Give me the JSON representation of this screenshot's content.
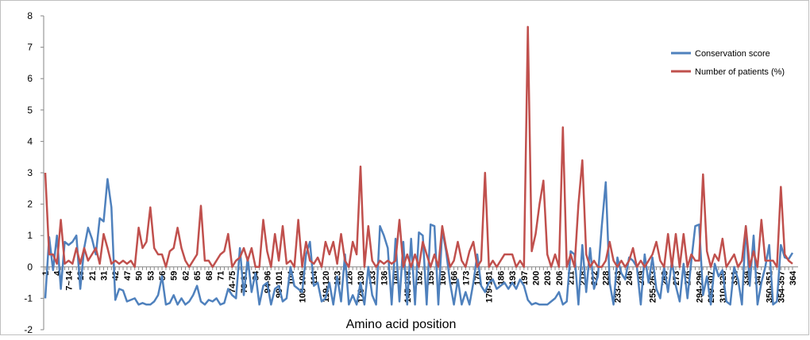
{
  "chart_data": {
    "type": "line",
    "x_label": "Amino acid position",
    "categories": [
      "1",
      null,
      null,
      "4",
      null,
      null,
      "7~14",
      null,
      null,
      "18",
      null,
      null,
      "21",
      null,
      null,
      "31",
      null,
      null,
      "42",
      null,
      null,
      "47",
      null,
      null,
      "50",
      null,
      null,
      "53",
      null,
      null,
      "56",
      null,
      null,
      "59",
      null,
      null,
      "62",
      null,
      null,
      "65",
      null,
      null,
      "68",
      null,
      null,
      "71",
      null,
      null,
      "74-75",
      null,
      null,
      "78-81",
      null,
      null,
      "84",
      null,
      null,
      "94-96",
      null,
      null,
      "99-101",
      null,
      null,
      "104",
      null,
      null,
      "108-109",
      null,
      null,
      "114",
      null,
      null,
      "119-120",
      null,
      null,
      "123",
      null,
      null,
      "126",
      null,
      null,
      "129-130",
      null,
      null,
      "133",
      null,
      null,
      "136",
      null,
      null,
      "140",
      null,
      null,
      "145-148",
      null,
      null,
      "152",
      null,
      null,
      "155",
      null,
      null,
      "160",
      null,
      null,
      "166",
      null,
      null,
      "173",
      null,
      null,
      "176",
      null,
      null,
      "179-181",
      null,
      null,
      "186",
      null,
      null,
      "193",
      null,
      null,
      "197",
      null,
      null,
      "200",
      null,
      null,
      "203",
      null,
      null,
      "206",
      null,
      null,
      "211",
      null,
      null,
      "218",
      null,
      null,
      "222",
      null,
      null,
      "228",
      null,
      null,
      "233-243",
      null,
      null,
      "246",
      null,
      null,
      "249",
      null,
      null,
      "255-263",
      null,
      null,
      "268",
      null,
      null,
      "273",
      null,
      null,
      "276",
      null,
      null,
      "294-296",
      null,
      null,
      "299-307",
      null,
      null,
      "310-328",
      null,
      null,
      "331",
      null,
      null,
      "334",
      null,
      null,
      "347",
      null,
      null,
      "350-351",
      null,
      null,
      "354-357",
      null,
      null,
      "364"
    ],
    "series": [
      {
        "name": "Conservation score",
        "color": "#4f81bd",
        "values": [
          -1.0,
          0.95,
          -0.1,
          1.0,
          -0.7,
          0.8,
          0.7,
          0.8,
          1.0,
          -0.7,
          0.6,
          1.25,
          0.9,
          0.4,
          1.55,
          1.45,
          2.8,
          1.9,
          -1.05,
          -0.7,
          -0.75,
          -1.1,
          -1.05,
          -1.0,
          -1.2,
          -1.15,
          -1.2,
          -1.2,
          -1.1,
          -0.9,
          -0.3,
          -1.2,
          -1.15,
          -0.9,
          -1.2,
          -1.0,
          -1.2,
          -1.1,
          -0.9,
          -0.6,
          -1.1,
          -1.2,
          -1.05,
          -1.1,
          -1.0,
          -1.2,
          -1.15,
          -0.7,
          -0.9,
          -1.0,
          0.6,
          -0.9,
          0.3,
          -0.8,
          -0.2,
          -1.2,
          -0.6,
          -0.5,
          -1.2,
          -0.7,
          -0.6,
          -1.1,
          -1.0,
          0.0,
          -0.6,
          -0.7,
          -0.8,
          0.4,
          0.8,
          -0.6,
          -0.5,
          -1.1,
          -1.0,
          -0.5,
          -1.2,
          -0.3,
          -1.1,
          0.4,
          -1.2,
          -0.9,
          -1.2,
          -0.5,
          -1.2,
          0.0,
          -0.9,
          -1.2,
          1.3,
          1.0,
          0.6,
          -1.2,
          0.9,
          -1.1,
          0.8,
          -1.2,
          0.9,
          -1.2,
          1.1,
          1.0,
          -1.2,
          1.35,
          1.3,
          -1.2,
          1.2,
          0.5,
          -0.5,
          -1.2,
          -0.4,
          -1.2,
          -0.8,
          -1.2,
          -0.5,
          0.4,
          -0.6,
          -0.8,
          -0.5,
          -0.4,
          -0.7,
          -0.6,
          -0.5,
          -0.7,
          -0.5,
          -0.7,
          -0.4,
          -0.6,
          -1.05,
          -1.2,
          -1.15,
          -1.2,
          -1.2,
          -1.2,
          -1.1,
          -1.0,
          -0.8,
          -1.2,
          -1.1,
          0.5,
          0.4,
          -1.2,
          0.7,
          -0.8,
          0.6,
          -0.7,
          -0.3,
          1.3,
          2.7,
          -0.5,
          -1.2,
          0.3,
          -0.2,
          -0.4,
          0.3,
          0.2,
          0.0,
          -1.2,
          0.4,
          -0.5,
          0.3,
          -0.7,
          -1.0,
          0.0,
          -0.8,
          0.2,
          -0.6,
          -1.1,
          0.1,
          -1.0,
          0.2,
          1.3,
          1.35,
          -0.9,
          -0.3,
          -1.2,
          0.1,
          -0.3,
          -0.1,
          -1.1,
          -1.2,
          0.0,
          -0.4,
          -1.2,
          1.3,
          -0.6,
          1.0,
          -1.2,
          -0.5,
          0.0,
          0.7,
          -1.2,
          -1.1,
          0.7,
          0.3,
          0.25,
          0.45
        ]
      },
      {
        "name": "Number of patients (%)",
        "color": "#c0504d",
        "values": [
          3.0,
          0.4,
          0.4,
          0.1,
          1.5,
          0.1,
          0.2,
          0.1,
          0.6,
          0.1,
          0.6,
          0.2,
          0.4,
          0.6,
          0.1,
          1.05,
          0.6,
          0.1,
          0.2,
          0.1,
          0.2,
          0.1,
          0.2,
          0.0,
          1.25,
          0.6,
          0.8,
          1.9,
          0.6,
          0.4,
          0.4,
          0.0,
          0.5,
          0.6,
          1.25,
          0.6,
          0.2,
          0.0,
          0.2,
          0.4,
          1.95,
          0.2,
          0.2,
          0.0,
          0.2,
          0.4,
          0.5,
          1.05,
          0.0,
          0.2,
          0.3,
          0.6,
          0.2,
          0.6,
          0.0,
          0.0,
          1.5,
          0.5,
          0.0,
          1.05,
          0.2,
          1.3,
          0.1,
          0.2,
          0.0,
          1.5,
          0.0,
          0.8,
          0.2,
          0.1,
          0.3,
          0.0,
          0.8,
          0.4,
          0.8,
          0.1,
          1.05,
          0.2,
          0.0,
          0.8,
          0.4,
          3.2,
          0.0,
          1.3,
          0.2,
          0.0,
          0.2,
          0.1,
          0.2,
          0.1,
          0.2,
          1.5,
          0.0,
          0.4,
          0.0,
          0.4,
          0.0,
          0.8,
          0.4,
          0.0,
          0.4,
          0.0,
          1.3,
          0.6,
          0.0,
          0.2,
          0.8,
          0.2,
          0.0,
          0.5,
          0.8,
          0.0,
          0.2,
          3.0,
          0.0,
          0.2,
          0.0,
          0.2,
          0.4,
          0.4,
          0.4,
          0.0,
          0.2,
          0.0,
          7.65,
          0.5,
          1.05,
          2.0,
          2.75,
          0.4,
          0.0,
          0.4,
          0.0,
          4.45,
          0.0,
          0.4,
          0.0,
          2.0,
          3.4,
          0.4,
          0.0,
          0.2,
          0.0,
          0.0,
          0.2,
          0.8,
          0.2,
          0.0,
          0.2,
          0.0,
          0.2,
          0.6,
          0.0,
          0.2,
          0.0,
          0.2,
          0.4,
          0.8,
          0.2,
          0.0,
          1.05,
          0.0,
          1.05,
          0.0,
          1.05,
          0.0,
          0.4,
          0.2,
          0.2,
          2.95,
          0.5,
          0.0,
          0.4,
          0.2,
          0.9,
          0.0,
          0.2,
          0.4,
          0.0,
          0.2,
          1.3,
          0.0,
          0.5,
          0.0,
          1.5,
          0.2,
          0.2,
          0.2,
          0.0,
          2.55,
          0.4,
          0.2,
          0.1
        ]
      }
    ],
    "ylim": [
      -2,
      8
    ],
    "yticks": [
      -2,
      -1,
      0,
      1,
      2,
      3,
      4,
      5,
      6,
      7,
      8
    ],
    "grid": false,
    "legend": "top-right"
  }
}
